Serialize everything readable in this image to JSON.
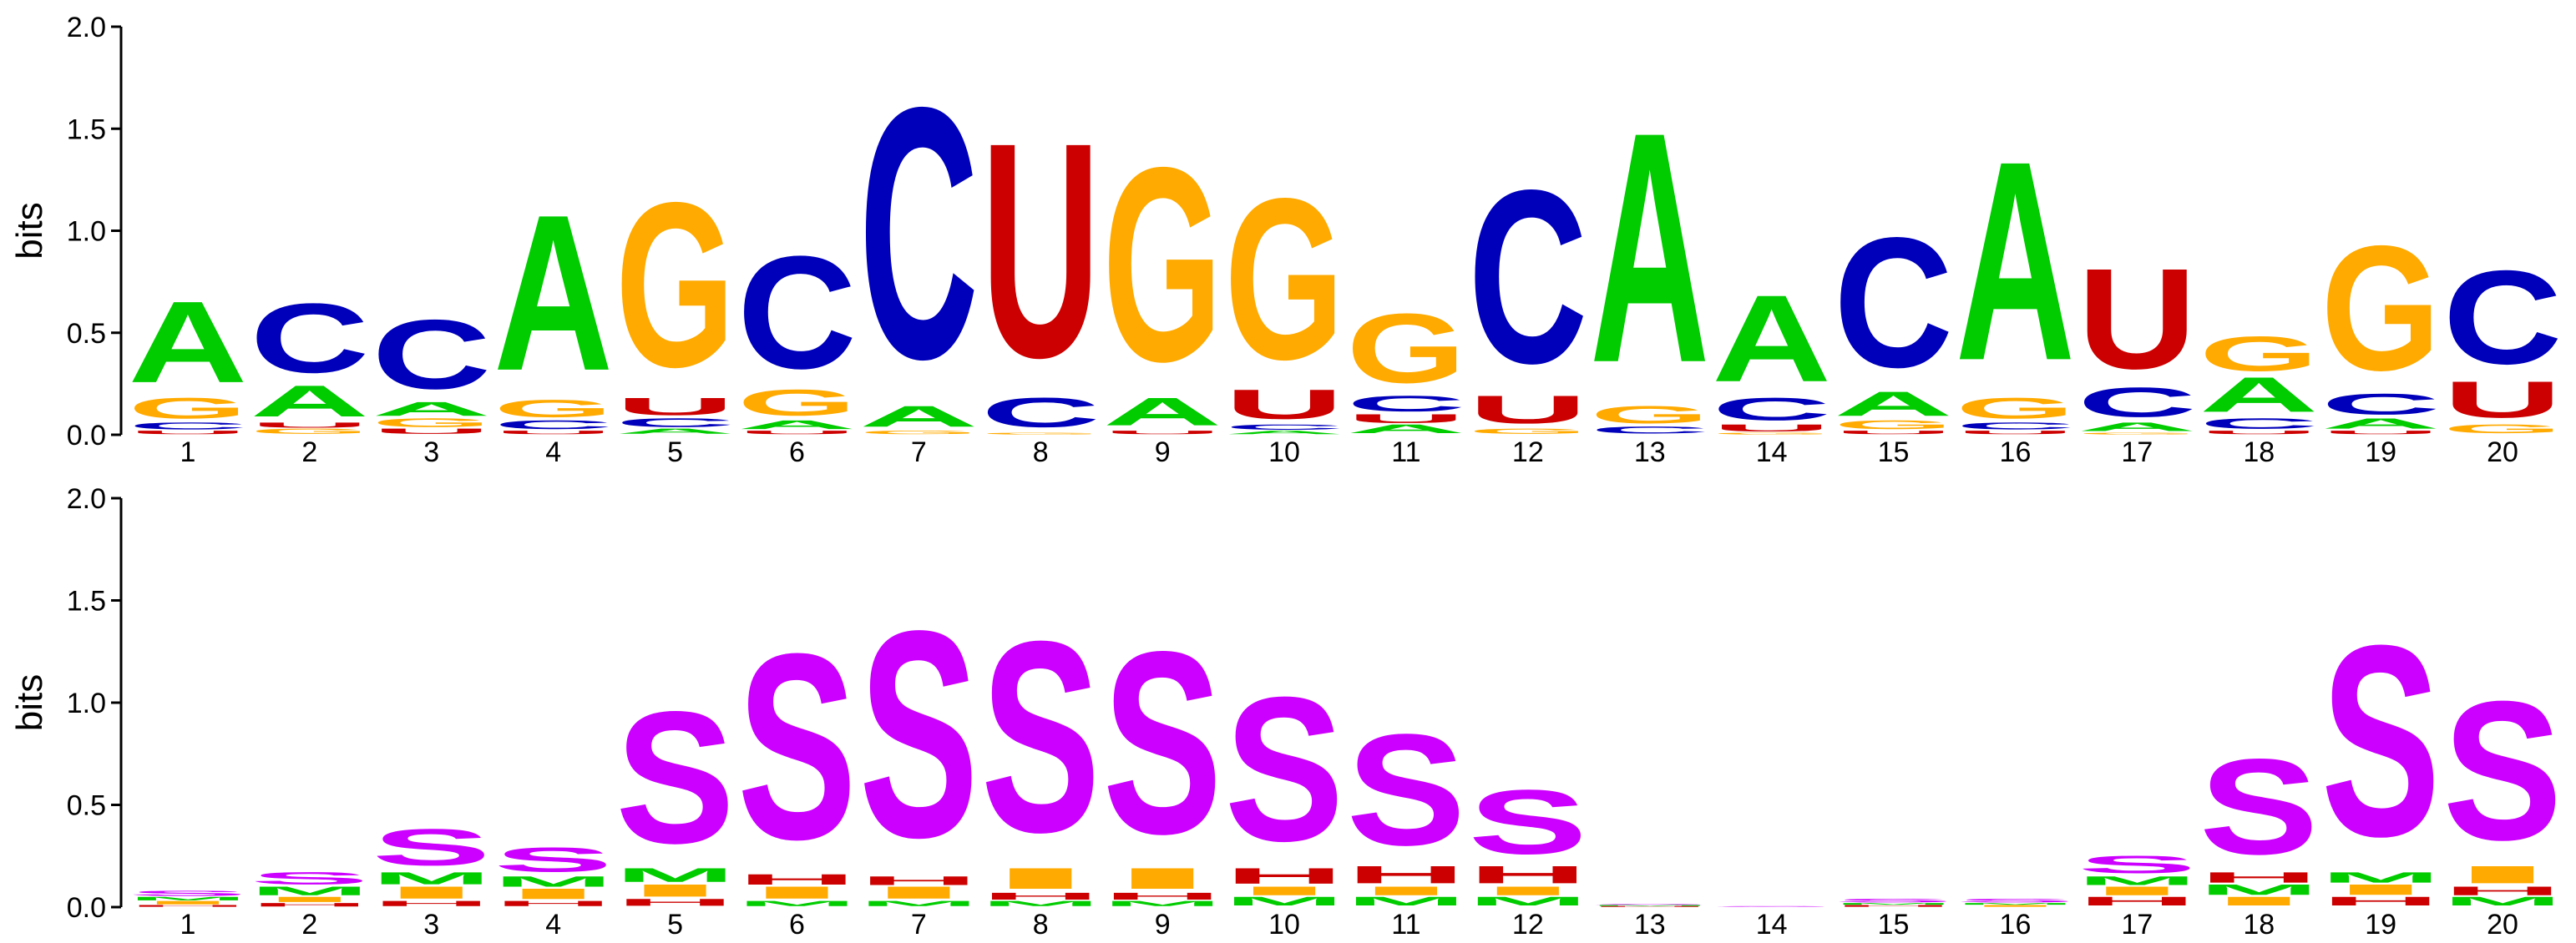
{
  "chart_data": [
    {
      "type": "sequence-logo",
      "alphabet": "RNA",
      "ylabel": "bits",
      "ylim": [
        0,
        2
      ],
      "yticks": [
        "0.0",
        "0.5",
        "1.0",
        "1.5",
        "2.0"
      ],
      "positions": [
        "1",
        "2",
        "3",
        "4",
        "5",
        "6",
        "7",
        "8",
        "9",
        "10",
        "11",
        "12",
        "13",
        "14",
        "15",
        "16",
        "17",
        "18",
        "19",
        "20"
      ],
      "colors": {
        "A": "#00cc00",
        "C": "#0000bb",
        "G": "#ffaa00",
        "U": "#cc0000"
      },
      "stacks": [
        [
          [
            "U",
            0.02
          ],
          [
            "C",
            0.04
          ],
          [
            "G",
            0.12
          ],
          [
            "A",
            0.47
          ]
        ],
        [
          [
            "G",
            0.03
          ],
          [
            "U",
            0.03
          ],
          [
            "A",
            0.18
          ],
          [
            "C",
            0.4
          ]
        ],
        [
          [
            "U",
            0.03
          ],
          [
            "G",
            0.05
          ],
          [
            "A",
            0.08
          ],
          [
            "C",
            0.4
          ]
        ],
        [
          [
            "U",
            0.02
          ],
          [
            "C",
            0.05
          ],
          [
            "G",
            0.1
          ],
          [
            "A",
            0.9
          ]
        ],
        [
          [
            "A",
            0.03
          ],
          [
            "C",
            0.05
          ],
          [
            "U",
            0.1
          ],
          [
            "G",
            0.95
          ]
        ],
        [
          [
            "U",
            0.02
          ],
          [
            "A",
            0.05
          ],
          [
            "G",
            0.15
          ],
          [
            "C",
            0.65
          ]
        ],
        [
          [
            "G",
            0.02
          ],
          [
            "A",
            0.12
          ],
          [
            "C",
            1.45
          ]
        ],
        [
          [
            "G",
            0.01
          ],
          [
            "C",
            0.17
          ],
          [
            "U",
            1.24
          ]
        ],
        [
          [
            "U",
            0.02
          ],
          [
            "A",
            0.16
          ],
          [
            "G",
            1.12
          ]
        ],
        [
          [
            "A",
            0.02
          ],
          [
            "C",
            0.03
          ],
          [
            "U",
            0.17
          ],
          [
            "G",
            0.93
          ]
        ],
        [
          [
            "A",
            0.05
          ],
          [
            "U",
            0.05
          ],
          [
            "C",
            0.09
          ],
          [
            "G",
            0.4
          ]
        ],
        [
          [
            "G",
            0.03
          ],
          [
            "U",
            0.16
          ],
          [
            "C",
            1.0
          ]
        ],
        [
          [
            "C",
            0.04
          ],
          [
            "G",
            0.1
          ],
          [
            "A",
            1.33
          ]
        ],
        [
          [
            "G",
            0.01
          ],
          [
            "U",
            0.04
          ],
          [
            "C",
            0.13
          ],
          [
            "A",
            0.5
          ]
        ],
        [
          [
            "U",
            0.02
          ],
          [
            "G",
            0.05
          ],
          [
            "A",
            0.14
          ],
          [
            "C",
            0.75
          ]
        ],
        [
          [
            "U",
            0.02
          ],
          [
            "C",
            0.04
          ],
          [
            "G",
            0.12
          ],
          [
            "A",
            1.15
          ]
        ],
        [
          [
            "G",
            0.01
          ],
          [
            "A",
            0.05
          ],
          [
            "C",
            0.17
          ],
          [
            "U",
            0.58
          ]
        ],
        [
          [
            "U",
            0.02
          ],
          [
            "C",
            0.06
          ],
          [
            "A",
            0.2
          ],
          [
            "G",
            0.2
          ]
        ],
        [
          [
            "U",
            0.02
          ],
          [
            "A",
            0.06
          ],
          [
            "C",
            0.12
          ],
          [
            "G",
            0.72
          ]
        ],
        [
          [
            "G",
            0.05
          ],
          [
            "U",
            0.21
          ],
          [
            "C",
            0.54
          ]
        ]
      ]
    },
    {
      "type": "sequence-logo",
      "alphabet": "structure",
      "ylabel": "bits",
      "ylim": [
        0,
        2
      ],
      "yticks": [
        "0.0",
        "0.5",
        "1.0",
        "1.5",
        "2.0"
      ],
      "positions": [
        "1",
        "2",
        "3",
        "4",
        "5",
        "6",
        "7",
        "8",
        "9",
        "10",
        "11",
        "12",
        "13",
        "14",
        "15",
        "16",
        "17",
        "18",
        "19",
        "20"
      ],
      "colors": {
        "S": "#cc00ff",
        "M": "#00cc00",
        "I": "#ffaa00",
        "H": "#cc0000"
      },
      "stacks": [
        [
          [
            "H",
            0.01
          ],
          [
            "I",
            0.02
          ],
          [
            "M",
            0.02
          ],
          [
            "S",
            0.03
          ]
        ],
        [
          [
            "H",
            0.02
          ],
          [
            "I",
            0.03
          ],
          [
            "M",
            0.05
          ],
          [
            "S",
            0.07
          ]
        ],
        [
          [
            "H",
            0.03
          ],
          [
            "I",
            0.07
          ],
          [
            "M",
            0.07
          ],
          [
            "S",
            0.21
          ]
        ],
        [
          [
            "H",
            0.03
          ],
          [
            "I",
            0.06
          ],
          [
            "M",
            0.06
          ],
          [
            "S",
            0.14
          ]
        ],
        [
          [
            "H",
            0.04
          ],
          [
            "I",
            0.07
          ],
          [
            "M",
            0.08
          ],
          [
            "S",
            0.76
          ]
        ],
        [
          [
            "M",
            0.03
          ],
          [
            "I",
            0.07
          ],
          [
            "H",
            0.06
          ],
          [
            "S",
            1.07
          ]
        ],
        [
          [
            "M",
            0.03
          ],
          [
            "I",
            0.07
          ],
          [
            "H",
            0.05
          ],
          [
            "S",
            1.19
          ]
        ],
        [
          [
            "M",
            0.03
          ],
          [
            "H",
            0.04
          ],
          [
            "I",
            0.12
          ],
          [
            "S",
            1.1
          ]
        ],
        [
          [
            "M",
            0.03
          ],
          [
            "H",
            0.04
          ],
          [
            "I",
            0.12
          ],
          [
            "S",
            1.05
          ]
        ],
        [
          [
            "M",
            0.05
          ],
          [
            "I",
            0.05
          ],
          [
            "H",
            0.09
          ],
          [
            "S",
            0.83
          ]
        ],
        [
          [
            "M",
            0.05
          ],
          [
            "I",
            0.05
          ],
          [
            "H",
            0.1
          ],
          [
            "S",
            0.64
          ]
        ],
        [
          [
            "M",
            0.05
          ],
          [
            "I",
            0.05
          ],
          [
            "H",
            0.1
          ],
          [
            "S",
            0.37
          ]
        ],
        [
          [
            "H",
            0.005
          ],
          [
            "M",
            0.005
          ],
          [
            "S",
            0.005
          ]
        ],
        [
          [
            "S",
            0.005
          ]
        ],
        [
          [
            "H",
            0.01
          ],
          [
            "M",
            0.01
          ],
          [
            "S",
            0.02
          ]
        ],
        [
          [
            "I",
            0.01
          ],
          [
            "M",
            0.01
          ],
          [
            "S",
            0.02
          ]
        ],
        [
          [
            "H",
            0.05
          ],
          [
            "I",
            0.05
          ],
          [
            "M",
            0.05
          ],
          [
            "S",
            0.1
          ]
        ],
        [
          [
            "I",
            0.05
          ],
          [
            "M",
            0.06
          ],
          [
            "H",
            0.06
          ],
          [
            "S",
            0.55
          ]
        ],
        [
          [
            "H",
            0.05
          ],
          [
            "I",
            0.06
          ],
          [
            "M",
            0.06
          ],
          [
            "S",
            1.1
          ]
        ],
        [
          [
            "M",
            0.05
          ],
          [
            "H",
            0.05
          ],
          [
            "I",
            0.1
          ],
          [
            "S",
            0.8
          ]
        ]
      ]
    }
  ]
}
